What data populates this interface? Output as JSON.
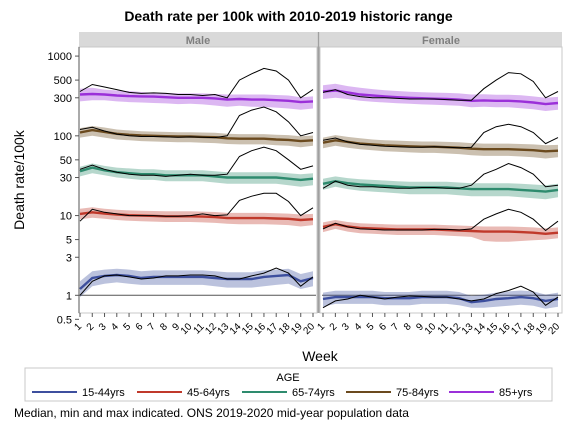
{
  "title": "Death rate per 100k with 2010-2019 historic range",
  "footer": "Median, min and max indicated. ONS 2019-2020 mid-year population data",
  "chart_data": {
    "type": "line",
    "title": "Death rate per 100k with 2010-2019 historic range",
    "xlabel": "Week",
    "ylabel": "Death rate/100k",
    "yscale": "log",
    "ylim": [
      0.6,
      1300
    ],
    "yticks": [
      0.5,
      1,
      3,
      5,
      10,
      30,
      50,
      100,
      300,
      500,
      1000
    ],
    "ytick_labels": [
      "0.5",
      "1",
      "3",
      "5",
      "10",
      "30",
      "50",
      "100",
      "300",
      "500",
      "1000"
    ],
    "xticks": [
      1,
      2,
      3,
      4,
      5,
      6,
      7,
      8,
      9,
      10,
      11,
      12,
      13,
      14,
      15,
      16,
      17,
      18,
      19,
      20
    ],
    "xlim": [
      1,
      20
    ],
    "grid": false,
    "legend": {
      "title": "AGE",
      "position": "bottom",
      "items": [
        "15-44yrs",
        "45-64yrs",
        "65-74yrs",
        "75-84yrs",
        "85+yrs"
      ]
    },
    "colors": {
      "15-44yrs": "#3d4f9e",
      "45-64yrs": "#c0392b",
      "65-74yrs": "#2e8b6e",
      "75-84yrs": "#6b4a1e",
      "85+yrs": "#9b30d9",
      "actual": "#000000"
    },
    "panels": [
      {
        "name": "Male",
        "series": [
          {
            "name": "85+yrs",
            "median": [
              330,
              335,
              330,
              320,
              315,
              312,
              310,
              305,
              300,
              300,
              300,
              295,
              285,
              290,
              285,
              285,
              280,
              275,
              265,
              270
            ],
            "min": [
              270,
              280,
              280,
              270,
              265,
              262,
              258,
              255,
              250,
              252,
              248,
              240,
              232,
              238,
              232,
              230,
              226,
              220,
              212,
              220
            ],
            "max": [
              390,
              400,
              380,
              370,
              365,
              355,
              345,
              345,
              340,
              340,
              340,
              335,
              330,
              330,
              330,
              330,
              325,
              320,
              305,
              312
            ],
            "actual": [
              360,
              440,
              410,
              380,
              350,
              340,
              345,
              340,
              330,
              330,
              320,
              330,
              300,
              500,
              600,
              700,
              650,
              500,
              300,
              380
            ]
          },
          {
            "name": "75-84yrs",
            "median": [
              110,
              118,
              112,
              106,
              103,
              101,
              100,
              99,
              98,
              98,
              97,
              96,
              93,
              92,
              92,
              92,
              90,
              89,
              86,
              88
            ],
            "min": [
              95,
              100,
              95,
              90,
              88,
              86,
              85,
              84,
              83,
              83,
              82,
              81,
              79,
              78,
              78,
              78,
              76,
              75,
              72,
              75
            ],
            "max": [
              125,
              133,
              127,
              120,
              117,
              114,
              113,
              112,
              111,
              111,
              110,
              109,
              106,
              105,
              105,
              105,
              103,
              102,
              99,
              101
            ],
            "actual": [
              120,
              128,
              115,
              105,
              100,
              98,
              98,
              97,
              96,
              97,
              96,
              95,
              100,
              180,
              210,
              230,
              200,
              150,
              100,
              110
            ]
          },
          {
            "name": "65-74yrs",
            "median": [
              36,
              40,
              37,
              35,
              34,
              33,
              33,
              32,
              32,
              32,
              32,
              31,
              30,
              30,
              30,
              30,
              30,
              29,
              28,
              29
            ],
            "min": [
              31,
              34,
              32,
              30,
              29,
              28,
              28,
              27,
              27,
              27,
              27,
              26,
              25,
              25,
              25,
              25,
              25,
              24,
              23,
              24
            ],
            "max": [
              41,
              45,
              42,
              40,
              39,
              38,
              38,
              37,
              37,
              37,
              37,
              36,
              35,
              35,
              35,
              35,
              35,
              34,
              33,
              34
            ],
            "actual": [
              38,
              43,
              38,
              35,
              33,
              32,
              32,
              31,
              32,
              33,
              32,
              32,
              33,
              55,
              65,
              72,
              65,
              50,
              38,
              42
            ]
          },
          {
            "name": "45-64yrs",
            "median": [
              10.5,
              11.0,
              10.6,
              10.3,
              10.1,
              10.0,
              9.9,
              9.8,
              9.8,
              9.8,
              9.7,
              9.6,
              9.3,
              9.3,
              9.3,
              9.3,
              9.2,
              9.1,
              8.8,
              9.0
            ],
            "min": [
              9.0,
              9.4,
              9.1,
              8.8,
              8.6,
              8.5,
              8.4,
              8.3,
              8.3,
              8.3,
              8.2,
              8.1,
              7.9,
              7.8,
              7.8,
              7.8,
              7.7,
              7.6,
              7.3,
              7.6
            ],
            "max": [
              12.2,
              12.7,
              12.2,
              11.8,
              11.6,
              11.5,
              11.4,
              11.3,
              11.3,
              11.3,
              11.2,
              11.1,
              10.8,
              10.8,
              10.8,
              10.8,
              10.7,
              10.6,
              10.3,
              10.5
            ],
            "actual": [
              8.5,
              12.0,
              11.0,
              10.5,
              10.0,
              10.0,
              10.0,
              9.8,
              9.8,
              10.0,
              10.5,
              10.0,
              10.2,
              15.5,
              17.5,
              19.0,
              19.0,
              15.0,
              10.0,
              12.5
            ]
          },
          {
            "name": "15-44yrs",
            "median": [
              1.2,
              1.65,
              1.75,
              1.8,
              1.75,
              1.65,
              1.7,
              1.7,
              1.7,
              1.7,
              1.7,
              1.65,
              1.6,
              1.6,
              1.6,
              1.7,
              1.75,
              1.8,
              1.5,
              1.65
            ],
            "min": [
              0.95,
              1.3,
              1.4,
              1.45,
              1.4,
              1.35,
              1.35,
              1.35,
              1.35,
              1.35,
              1.35,
              1.3,
              1.25,
              1.25,
              1.25,
              1.3,
              1.35,
              1.4,
              1.2,
              1.3
            ],
            "max": [
              1.5,
              2.0,
              2.1,
              2.15,
              2.1,
              2.0,
              2.05,
              2.05,
              2.05,
              2.05,
              2.05,
              2.0,
              1.95,
              1.95,
              1.95,
              2.05,
              2.1,
              2.15,
              1.85,
              2.0
            ],
            "actual": [
              1.0,
              1.5,
              1.75,
              1.8,
              1.7,
              1.6,
              1.65,
              1.75,
              1.75,
              1.8,
              1.8,
              1.75,
              1.6,
              1.6,
              1.75,
              1.9,
              2.2,
              1.9,
              1.3,
              1.7
            ]
          }
        ]
      },
      {
        "name": "Female",
        "series": [
          {
            "name": "85+yrs",
            "median": [
              360,
              370,
              350,
              330,
              320,
              312,
              305,
              300,
              296,
              292,
              290,
              285,
              275,
              278,
              275,
              275,
              270,
              262,
              250,
              258
            ],
            "min": [
              290,
              300,
              290,
              275,
              268,
              262,
              256,
              252,
              248,
              245,
              242,
              238,
              228,
              232,
              228,
              228,
              222,
              216,
              205,
              212
            ],
            "max": [
              430,
              450,
              420,
              400,
              385,
              372,
              365,
              358,
              352,
              348,
              345,
              340,
              330,
              332,
              328,
              328,
              322,
              312,
              300,
              308
            ],
            "actual": [
              350,
              380,
              330,
              310,
              300,
              300,
              295,
              290,
              290,
              290,
              285,
              280,
              280,
              390,
              500,
              620,
              600,
              480,
              300,
              360
            ]
          },
          {
            "name": "75-84yrs",
            "median": [
              82,
              88,
              84,
              80,
              78,
              76,
              75,
              74,
              73,
              73,
              72,
              71,
              69,
              68,
              68,
              68,
              67,
              66,
              64,
              65
            ],
            "min": [
              70,
              75,
              71,
              68,
              66,
              64,
              63,
              62,
              61,
              61,
              60,
              59,
              57,
              56,
              56,
              56,
              55,
              54,
              52,
              54
            ],
            "max": [
              95,
              102,
              97,
              93,
              90,
              88,
              87,
              86,
              85,
              85,
              84,
              83,
              81,
              80,
              80,
              80,
              79,
              78,
              76,
              77
            ],
            "actual": [
              88,
              94,
              84,
              78,
              76,
              74,
              73,
              72,
              72,
              73,
              72,
              71,
              72,
              110,
              130,
              140,
              130,
              110,
              80,
              95
            ]
          },
          {
            "name": "65-74yrs",
            "median": [
              25,
              27,
              25.5,
              24.5,
              24,
              23.5,
              23,
              22.5,
              22.5,
              22.5,
              22.5,
              22,
              21.5,
              21.5,
              21.5,
              21.5,
              21,
              20.5,
              20,
              21
            ],
            "min": [
              21,
              23,
              21.5,
              20.5,
              20,
              19.5,
              19,
              18.5,
              18.5,
              18.5,
              18.5,
              18,
              17.5,
              17.5,
              17.5,
              17.5,
              17,
              16.5,
              16,
              17
            ],
            "max": [
              29,
              31,
              29.5,
              28.5,
              28,
              27.5,
              27,
              26.5,
              26.5,
              26.5,
              26.5,
              26,
              25.5,
              25.5,
              25.5,
              25.5,
              25,
              24.5,
              24,
              25
            ],
            "actual": [
              22,
              27,
              24,
              23,
              23,
              22.5,
              22,
              22,
              22.5,
              22.5,
              22,
              22,
              24,
              33,
              38,
              45,
              40,
              33,
              23,
              24
            ]
          },
          {
            "name": "45-64yrs",
            "median": [
              7.2,
              7.8,
              7.3,
              7.0,
              6.9,
              6.8,
              6.7,
              6.7,
              6.7,
              6.7,
              6.6,
              6.5,
              6.4,
              6.3,
              6.3,
              6.3,
              6.2,
              6.1,
              5.9,
              6.1
            ],
            "min": [
              6.2,
              6.8,
              6.3,
              6.0,
              5.9,
              5.8,
              5.7,
              5.7,
              5.7,
              5.7,
              5.6,
              5.5,
              5.4,
              4.8,
              4.7,
              4.7,
              4.8,
              4.9,
              5.0,
              5.2
            ],
            "max": [
              8.2,
              8.8,
              8.3,
              8.0,
              7.9,
              7.8,
              7.7,
              7.7,
              7.7,
              7.7,
              7.6,
              7.5,
              7.4,
              7.3,
              7.3,
              7.3,
              7.2,
              7.1,
              6.9,
              7.1
            ],
            "actual": [
              6.8,
              8.0,
              7.2,
              6.8,
              6.7,
              6.6,
              6.6,
              6.6,
              6.6,
              6.7,
              6.7,
              6.6,
              6.8,
              9.0,
              10.5,
              12.0,
              11.0,
              9.0,
              6.5,
              8.5
            ]
          },
          {
            "name": "15-44yrs",
            "median": [
              0.9,
              0.95,
              0.95,
              0.95,
              0.95,
              0.92,
              0.92,
              0.92,
              0.95,
              0.95,
              0.95,
              0.92,
              0.82,
              0.85,
              0.9,
              0.92,
              0.95,
              0.92,
              0.85,
              0.9
            ],
            "min": [
              0.72,
              0.78,
              0.78,
              0.78,
              0.78,
              0.75,
              0.75,
              0.75,
              0.78,
              0.78,
              0.78,
              0.75,
              0.7,
              0.7,
              0.72,
              0.74,
              0.76,
              0.74,
              0.68,
              0.72
            ],
            "max": [
              1.08,
              1.14,
              1.14,
              1.14,
              1.14,
              1.1,
              1.1,
              1.1,
              1.14,
              1.14,
              1.14,
              1.1,
              0.98,
              1.02,
              1.08,
              1.12,
              1.15,
              1.12,
              1.02,
              1.08
            ],
            "actual": [
              0.7,
              0.85,
              0.9,
              1.0,
              0.95,
              0.9,
              0.95,
              0.98,
              0.97,
              0.95,
              0.95,
              0.9,
              0.85,
              0.9,
              1.05,
              1.15,
              1.3,
              1.1,
              0.75,
              0.95
            ]
          }
        ]
      }
    ]
  }
}
